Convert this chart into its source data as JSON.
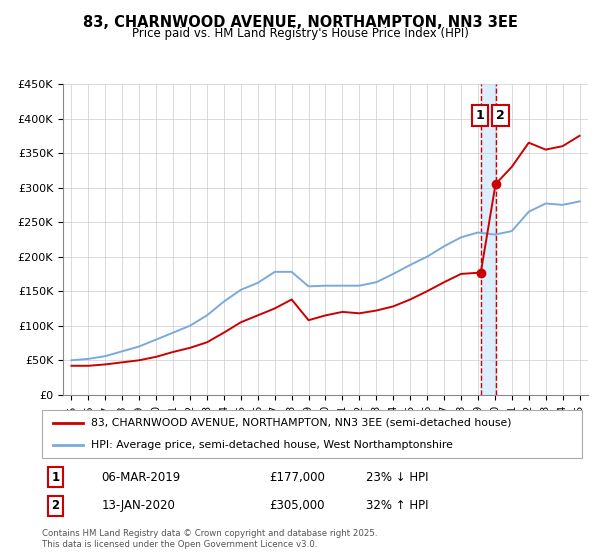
{
  "title": "83, CHARNWOOD AVENUE, NORTHAMPTON, NN3 3EE",
  "subtitle": "Price paid vs. HM Land Registry's House Price Index (HPI)",
  "footer": "Contains HM Land Registry data © Crown copyright and database right 2025.\nThis data is licensed under the Open Government Licence v3.0.",
  "legend_line1": "83, CHARNWOOD AVENUE, NORTHAMPTON, NN3 3EE (semi-detached house)",
  "legend_line2": "HPI: Average price, semi-detached house, West Northamptonshire",
  "sale1_label": "06-MAR-2019",
  "sale1_price": "£177,000",
  "sale1_hpi": "23% ↓ HPI",
  "sale2_label": "13-JAN-2020",
  "sale2_price": "£305,000",
  "sale2_hpi": "32% ↑ HPI",
  "sale1_year": 2019.17,
  "sale1_value": 177000,
  "sale2_year": 2020.04,
  "sale2_value": 305000,
  "red_color": "#cc0000",
  "blue_color": "#7aaadd",
  "highlight_bg": "#ddeeff",
  "ylim": [
    0,
    450000
  ],
  "xlim_start": 1994.5,
  "xlim_end": 2025.5,
  "yticks": [
    0,
    50000,
    100000,
    150000,
    200000,
    250000,
    300000,
    350000,
    400000,
    450000
  ],
  "ytick_labels": [
    "£0",
    "£50K",
    "£100K",
    "£150K",
    "£200K",
    "£250K",
    "£300K",
    "£350K",
    "£400K",
    "£450K"
  ],
  "xticks": [
    1995,
    1996,
    1997,
    1998,
    1999,
    2000,
    2001,
    2002,
    2003,
    2004,
    2005,
    2006,
    2007,
    2008,
    2009,
    2010,
    2011,
    2012,
    2013,
    2014,
    2015,
    2016,
    2017,
    2018,
    2019,
    2020,
    2021,
    2022,
    2023,
    2024,
    2025
  ],
  "red_x": [
    1995,
    1996,
    1997,
    1998,
    1999,
    2000,
    2001,
    2002,
    2003,
    2004,
    2005,
    2006,
    2007,
    2008,
    2009,
    2010,
    2011,
    2012,
    2013,
    2014,
    2015,
    2016,
    2017,
    2018,
    2019.17,
    2020.04,
    2021,
    2022,
    2023,
    2024,
    2025
  ],
  "red_y": [
    42000,
    42000,
    44000,
    47000,
    50000,
    55000,
    62000,
    68000,
    76000,
    90000,
    105000,
    115000,
    125000,
    138000,
    108000,
    115000,
    120000,
    118000,
    122000,
    128000,
    138000,
    150000,
    163000,
    175000,
    177000,
    305000,
    330000,
    365000,
    355000,
    360000,
    375000
  ],
  "blue_x": [
    1995,
    1996,
    1997,
    1998,
    1999,
    2000,
    2001,
    2002,
    2003,
    2004,
    2005,
    2006,
    2007,
    2008,
    2009,
    2010,
    2011,
    2012,
    2013,
    2014,
    2015,
    2016,
    2017,
    2018,
    2019,
    2020,
    2021,
    2022,
    2023,
    2024,
    2025
  ],
  "blue_y": [
    50000,
    52000,
    56000,
    63000,
    70000,
    80000,
    90000,
    100000,
    115000,
    135000,
    152000,
    162000,
    178000,
    178000,
    157000,
    158000,
    158000,
    158000,
    163000,
    175000,
    188000,
    200000,
    215000,
    228000,
    235000,
    232000,
    237000,
    265000,
    277000,
    275000,
    280000
  ]
}
